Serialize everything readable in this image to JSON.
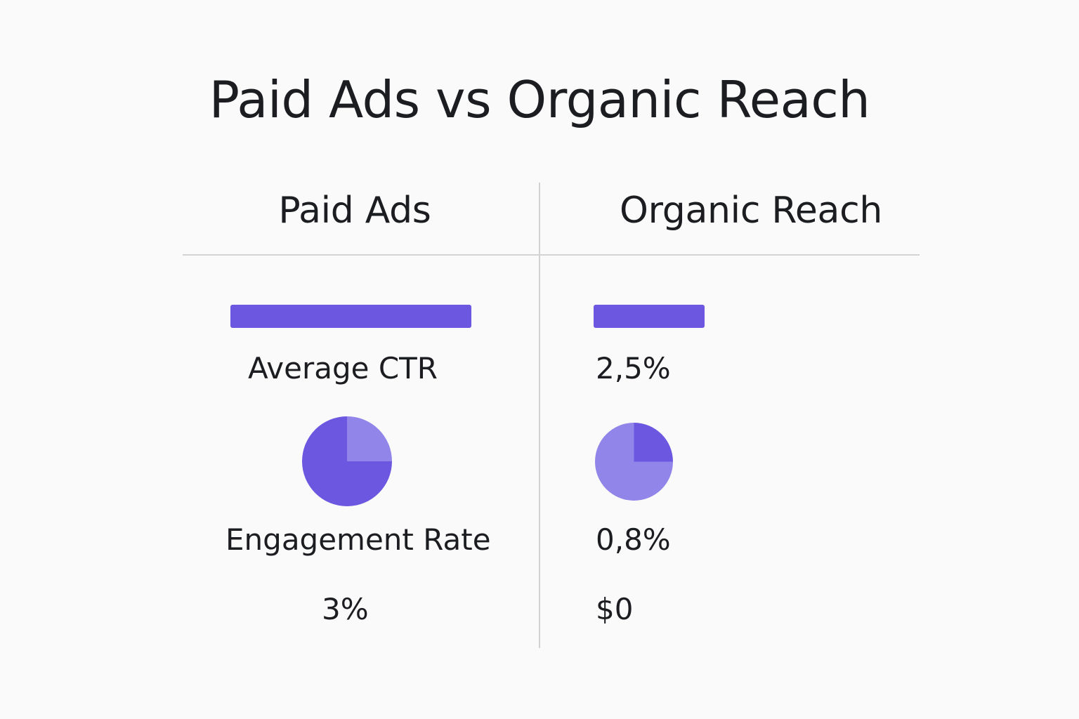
{
  "title": "Paid Ads vs Organic Reach",
  "columns": {
    "left": "Paid Ads",
    "right": "Organic Reach"
  },
  "rows": {
    "ctr_label": "Average CTR",
    "ctr_value_organic": "2,5%",
    "engagement_label": "Engagement Rate",
    "engagement_value_organic": "0,8%",
    "cost_value_paid": "3%",
    "cost_value_organic": "$0"
  },
  "colors": {
    "accent_dark": "#6b57e0",
    "accent_light": "#9285ea",
    "divider": "#d3d3d3"
  },
  "chart_data": {
    "type": "bar",
    "title": "Paid Ads vs Organic Reach",
    "categories": [
      "Paid Ads",
      "Organic Reach"
    ],
    "series": [
      {
        "metric": "bar",
        "values": [
          1.0,
          0.46
        ]
      },
      {
        "metric": "pie_dark_share",
        "values": [
          0.75,
          0.25
        ]
      }
    ]
  }
}
